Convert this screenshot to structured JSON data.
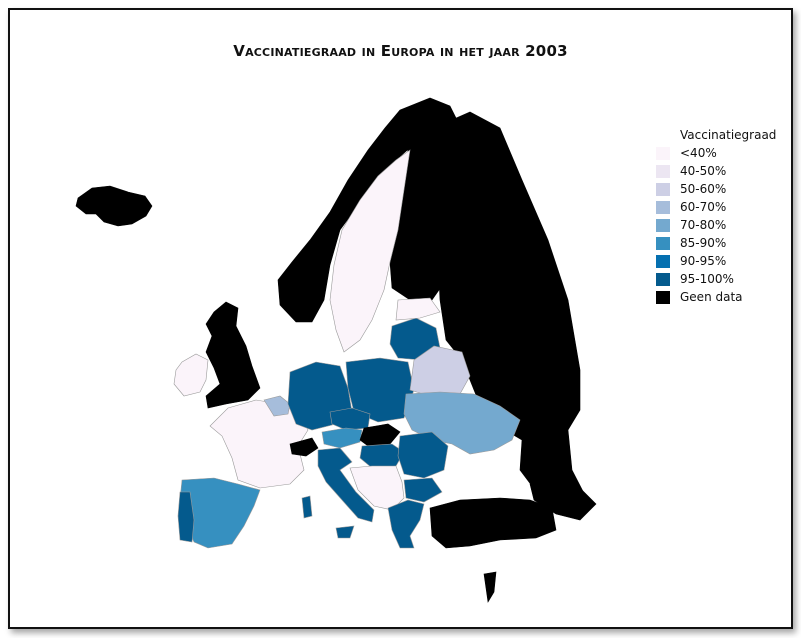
{
  "title": "Vaccinatiegraad in Europa in het jaar 2003",
  "legend": {
    "title": "Vaccinatiegraad",
    "items": [
      {
        "label": "<40%",
        "color": "#fbf4fa"
      },
      {
        "label": "40-50%",
        "color": "#ece6f2"
      },
      {
        "label": "50-60%",
        "color": "#cdcfe5"
      },
      {
        "label": "60-70%",
        "color": "#a6bddb"
      },
      {
        "label": "70-80%",
        "color": "#74a9cf"
      },
      {
        "label": "85-90%",
        "color": "#3690c0"
      },
      {
        "label": "90-95%",
        "color": "#0570b0"
      },
      {
        "label": "95-100%",
        "color": "#045a8d"
      },
      {
        "label": "Geen data",
        "color": "#000000"
      }
    ]
  },
  "regions": [
    {
      "name": "Iceland",
      "cls": "Geen data"
    },
    {
      "name": "Norway",
      "cls": "Geen data"
    },
    {
      "name": "Sweden",
      "cls": "<40%"
    },
    {
      "name": "Finland",
      "cls": "Geen data"
    },
    {
      "name": "Russia",
      "cls": "Geen data"
    },
    {
      "name": "United Kingdom",
      "cls": "Geen data"
    },
    {
      "name": "Ireland",
      "cls": "<40%"
    },
    {
      "name": "France",
      "cls": "<40%"
    },
    {
      "name": "Spain",
      "cls": "85-90%"
    },
    {
      "name": "Portugal",
      "cls": "95-100%"
    },
    {
      "name": "Belgium",
      "cls": "60-70%"
    },
    {
      "name": "Germany",
      "cls": "95-100%"
    },
    {
      "name": "Poland",
      "cls": "95-100%"
    },
    {
      "name": "Lithuania",
      "cls": "95-100%"
    },
    {
      "name": "Latvia",
      "cls": "<40%"
    },
    {
      "name": "Belarus",
      "cls": "50-60%"
    },
    {
      "name": "Ukraine",
      "cls": "70-80%"
    },
    {
      "name": "Czech Republic",
      "cls": "95-100%"
    },
    {
      "name": "Austria",
      "cls": "85-90%"
    },
    {
      "name": "Switzerland",
      "cls": "Geen data"
    },
    {
      "name": "Italy",
      "cls": "95-100%"
    },
    {
      "name": "Slovakia",
      "cls": "Geen data"
    },
    {
      "name": "Hungary",
      "cls": "95-100%"
    },
    {
      "name": "Romania",
      "cls": "95-100%"
    },
    {
      "name": "Bulgaria",
      "cls": "95-100%"
    },
    {
      "name": "Greece",
      "cls": "95-100%"
    },
    {
      "name": "Balkans",
      "cls": "<40%"
    },
    {
      "name": "Turkey",
      "cls": "Geen data"
    },
    {
      "name": "Caucasus",
      "cls": "Geen data"
    },
    {
      "name": "Cyprus",
      "cls": "Geen data"
    }
  ]
}
